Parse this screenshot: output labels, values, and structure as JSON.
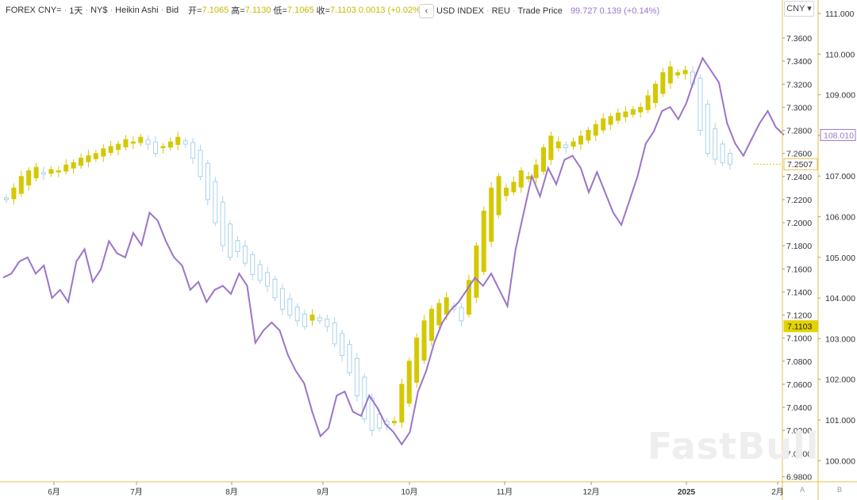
{
  "legend_left": {
    "symbol": "FOREX CNY=",
    "interval": "1天",
    "currency": "NY$",
    "style": "Heikin Ashi",
    "side": "Bid",
    "open_label": "开=",
    "open": "7.1065",
    "high_label": "高=",
    "high": "7.1130",
    "low_label": "低=",
    "low": "7.1065",
    "close_label": "收=",
    "close": "7.1103",
    "change": "0.0013 (+0.02%)"
  },
  "legend_right": {
    "collapse_icon": "‹",
    "symbol": "USD INDEX",
    "source": "REU",
    "field": "Trade Price",
    "price": "99.727",
    "change": "0.139 (+0.14%)"
  },
  "currency_button": "CNY ▾",
  "watermark": "FastBull",
  "axis_buttons": {
    "a": "A",
    "b": "B"
  },
  "colors": {
    "candle_up": "#d4c800",
    "candle_down": "#a9d2ec",
    "dxy_line": "#9b74c9",
    "axis_line": "#e6c24a",
    "last_price_bg": "#e3d400"
  },
  "chart_data": {
    "type": "line",
    "title": "",
    "x_ticks": [
      "6月",
      "7月",
      "8月",
      "9月",
      "10月",
      "11月",
      "12月",
      "2025",
      "2月"
    ],
    "left_axis_ticks": [
      "7.3600",
      "7.3400",
      "7.3200",
      "7.3000",
      "7.2800",
      "7.2600",
      "7.2400",
      "7.2200",
      "7.2000",
      "7.1800",
      "7.1600",
      "7.1400",
      "7.1200",
      "7.1000",
      "7.0800",
      "7.0600",
      "7.0400",
      "7.0200",
      "7.0000",
      "6.9800"
    ],
    "right_axis_ticks": [
      "111.000",
      "110.000",
      "109.000",
      "108.000",
      "107.000",
      "106.000",
      "105.000",
      "104.000",
      "103.000",
      "102.000",
      "101.000",
      "100.000"
    ],
    "left_axis_range": [
      6.98,
      7.37
    ],
    "right_axis_range": [
      99.55,
      111.05
    ],
    "last_price_cny": "7.1103",
    "prev_price_cny": "7.2507",
    "last_price_dxy": "108.010",
    "series": [
      {
        "name": "FOREX CNY=",
        "style": "heikin-ashi",
        "closes": [
          7.22,
          7.23,
          7.24,
          7.245,
          7.248,
          7.242,
          7.246,
          7.245,
          7.25,
          7.252,
          7.256,
          7.258,
          7.26,
          7.264,
          7.266,
          7.268,
          7.272,
          7.27,
          7.274,
          7.268,
          7.26,
          7.266,
          7.27,
          7.274,
          7.268,
          7.256,
          7.24,
          7.22,
          7.2,
          7.18,
          7.17,
          7.175,
          7.165,
          7.155,
          7.15,
          7.145,
          7.135,
          7.125,
          7.12,
          7.115,
          7.11,
          7.12,
          7.115,
          7.11,
          7.095,
          7.085,
          7.07,
          7.05,
          7.03,
          7.02,
          7.022,
          7.025,
          7.028,
          7.06,
          7.08,
          7.1,
          7.115,
          7.125,
          7.13,
          7.135,
          7.125,
          7.115,
          7.15,
          7.18,
          7.21,
          7.23,
          7.24,
          7.23,
          7.235,
          7.245,
          7.24,
          7.25,
          7.265,
          7.275,
          7.27,
          7.265,
          7.27,
          7.275,
          7.28,
          7.285,
          7.29,
          7.292,
          7.295,
          7.296,
          7.298,
          7.3,
          7.31,
          7.32,
          7.33,
          7.335,
          7.33,
          7.332,
          7.32,
          7.28,
          7.26,
          7.255,
          7.252,
          7.2507
        ]
      },
      {
        "name": "USD INDEX",
        "style": "line",
        "values": [
          104.5,
          104.6,
          104.9,
          105.0,
          104.6,
          104.8,
          104.0,
          104.2,
          103.9,
          104.9,
          105.2,
          104.4,
          104.7,
          105.4,
          105.1,
          105.0,
          105.6,
          105.3,
          106.1,
          105.9,
          105.4,
          105.0,
          104.8,
          104.2,
          104.4,
          103.9,
          104.2,
          104.3,
          104.1,
          104.6,
          104.3,
          102.9,
          103.2,
          103.4,
          103.2,
          102.6,
          102.2,
          101.9,
          101.2,
          100.6,
          100.8,
          101.6,
          101.7,
          101.2,
          101.1,
          101.6,
          101.3,
          100.9,
          100.7,
          100.4,
          100.7,
          101.7,
          102.2,
          102.9,
          103.4,
          103.7,
          103.9,
          104.2,
          104.5,
          104.3,
          104.6,
          104.2,
          103.8,
          105.2,
          106.1,
          107.0,
          106.5,
          107.2,
          106.8,
          107.4,
          107.5,
          107.2,
          106.6,
          107.1,
          106.6,
          106.1,
          105.8,
          106.4,
          107.0,
          107.8,
          108.1,
          108.6,
          108.7,
          108.4,
          108.8,
          109.4,
          109.9,
          109.6,
          109.3,
          108.3,
          107.8,
          107.5,
          107.9,
          108.3,
          108.6,
          108.2,
          108.01
        ]
      }
    ],
    "grid": false,
    "legend_position": "top-left"
  }
}
